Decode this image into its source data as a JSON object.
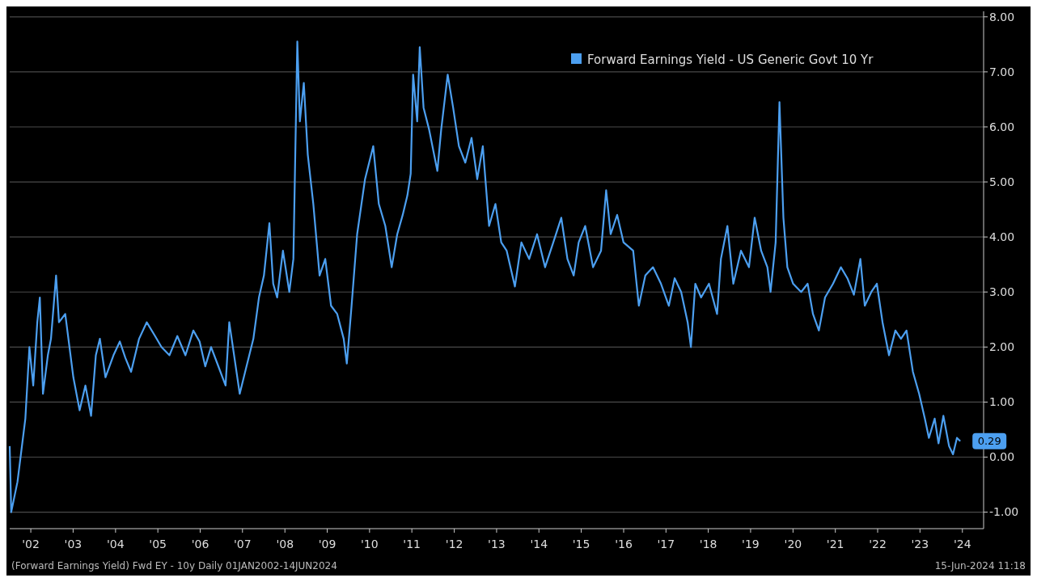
{
  "chart_data": {
    "type": "line",
    "series": [
      {
        "name": "Forward Earnings Yield - US Generic Govt 10 Yr",
        "color": "#4c9ff0",
        "x": [
          "2002-01-01",
          "2002-01-14",
          "2002-03-09",
          "2002-05-16",
          "2002-06-20",
          "2002-07-23",
          "2002-08-27",
          "2002-09-18",
          "2002-10-15",
          "2002-11-26",
          "2002-12-23",
          "2003-02-05",
          "2003-03-02",
          "2003-04-25",
          "2003-07-04",
          "2003-08-27",
          "2003-10-16",
          "2003-12-04",
          "2004-01-14",
          "2004-02-18",
          "2004-04-06",
          "2004-06-14",
          "2004-08-08",
          "2004-09-25",
          "2004-11-13",
          "2005-01-21",
          "2005-03-28",
          "2005-06-08",
          "2005-08-02",
          "2005-10-10",
          "2005-12-17",
          "2006-02-25",
          "2006-05-04",
          "2006-06-27",
          "2006-08-15",
          "2006-10-04",
          "2006-11-27",
          "2007-02-06",
          "2007-03-10",
          "2007-06-08",
          "2007-07-25",
          "2007-10-04",
          "2007-11-21",
          "2008-01-03",
          "2008-02-19",
          "2008-03-23",
          "2008-04-26",
          "2008-06-15",
          "2008-08-09",
          "2008-09-13",
          "2008-10-17",
          "2008-11-08",
          "2008-12-12",
          "2009-01-15",
          "2009-03-04",
          "2009-04-27",
          "2009-06-15",
          "2009-08-04",
          "2009-09-26",
          "2009-11-21",
          "2009-12-18",
          "2010-01-28",
          "2010-03-17",
          "2010-05-24",
          "2010-08-03",
          "2010-09-20",
          "2010-11-15",
          "2011-01-09",
          "2011-02-26",
          "2011-04-14",
          "2011-05-24",
          "2011-06-22",
          "2011-07-13",
          "2011-08-17",
          "2011-09-08",
          "2011-10-11",
          "2011-11-28",
          "2012-02-07",
          "2012-03-11",
          "2012-05-06",
          "2012-06-22",
          "2012-08-11",
          "2012-10-05",
          "2012-11-28",
          "2013-01-16",
          "2013-03-05",
          "2013-04-28",
          "2013-06-22",
          "2013-08-11",
          "2013-09-27",
          "2013-12-07",
          "2014-02-01",
          "2014-04-09",
          "2014-06-16",
          "2014-08-24",
          "2014-11-03",
          "2015-01-11",
          "2015-03-05",
          "2015-04-28",
          "2015-06-10",
          "2015-08-05",
          "2015-10-12",
          "2015-12-20",
          "2016-02-02",
          "2016-03-12",
          "2016-05-07",
          "2016-07-01",
          "2016-09-22",
          "2016-11-10",
          "2017-01-05",
          "2017-03-12",
          "2017-05-20",
          "2017-07-27",
          "2017-09-15",
          "2017-11-10",
          "2018-01-05",
          "2018-02-02",
          "2018-03-12",
          "2018-05-01",
          "2018-07-08",
          "2018-09-16",
          "2018-10-19",
          "2018-12-14",
          "2019-02-03",
          "2019-04-10",
          "2019-06-18",
          "2019-08-06",
          "2019-10-01",
          "2019-11-24",
          "2019-12-21",
          "2020-02-03",
          "2020-03-07",
          "2020-04-10",
          "2020-05-14",
          "2020-07-03",
          "2020-09-10",
          "2020-11-05",
          "2020-12-21",
          "2021-02-10",
          "2021-04-04",
          "2021-06-12",
          "2021-08-19",
          "2021-10-14",
          "2021-12-09",
          "2022-02-03",
          "2022-03-13",
          "2022-05-08",
          "2022-06-25",
          "2022-08-13",
          "2022-10-08",
          "2022-12-02",
          "2023-01-19",
          "2023-03-08",
          "2023-05-02",
          "2023-06-25",
          "2023-08-13",
          "2023-09-17",
          "2023-11-06",
          "2023-12-09",
          "2024-01-20",
          "2024-03-09",
          "2024-04-12",
          "2024-05-16",
          "2024-06-14"
        ],
        "values": [
          0.2,
          -1.0,
          -0.45,
          0.7,
          2.0,
          1.3,
          2.45,
          2.9,
          1.15,
          1.85,
          2.15,
          3.3,
          2.45,
          2.6,
          1.45,
          0.85,
          1.3,
          0.75,
          1.85,
          2.15,
          1.45,
          1.85,
          2.1,
          1.8,
          1.55,
          2.15,
          2.45,
          2.2,
          2.0,
          1.85,
          2.2,
          1.85,
          2.3,
          2.1,
          1.65,
          2.0,
          1.7,
          1.3,
          2.45,
          1.15,
          1.55,
          2.15,
          2.9,
          3.3,
          4.25,
          3.15,
          2.9,
          3.75,
          3.0,
          3.6,
          7.55,
          6.1,
          6.8,
          5.5,
          4.6,
          3.3,
          3.6,
          2.75,
          2.6,
          2.15,
          1.7,
          2.75,
          4.05,
          5.05,
          5.65,
          4.6,
          4.2,
          3.45,
          4.05,
          4.4,
          4.75,
          5.15,
          6.95,
          6.1,
          7.45,
          6.35,
          5.95,
          5.2,
          5.95,
          6.95,
          6.35,
          5.65,
          5.35,
          5.8,
          5.05,
          5.65,
          4.2,
          4.6,
          3.9,
          3.75,
          3.1,
          3.9,
          3.6,
          4.05,
          3.45,
          3.9,
          4.35,
          3.6,
          3.3,
          3.9,
          4.2,
          3.45,
          3.75,
          4.85,
          4.05,
          4.4,
          3.9,
          3.75,
          2.75,
          3.3,
          3.45,
          3.15,
          2.75,
          3.25,
          3.0,
          2.45,
          2.0,
          3.15,
          2.9,
          3.15,
          2.6,
          3.6,
          4.2,
          3.15,
          3.75,
          3.45,
          4.35,
          3.75,
          3.45,
          3.0,
          3.9,
          6.45,
          4.35,
          3.45,
          3.15,
          3.0,
          3.15,
          2.6,
          2.3,
          2.9,
          3.15,
          3.45,
          3.25,
          2.95,
          3.6,
          2.75,
          3.0,
          3.15,
          2.45,
          1.85,
          2.3,
          2.15,
          2.3,
          1.55,
          1.15,
          0.7,
          0.35,
          0.7,
          0.25,
          0.75,
          0.2,
          0.05,
          0.35,
          0.29
        ]
      }
    ],
    "xlim": [
      "2002-01-01",
      "2025-01-01"
    ],
    "xticks": [
      {
        "value": "2002-07-02",
        "label": "'02"
      },
      {
        "value": "2003-07-02",
        "label": "'03"
      },
      {
        "value": "2004-07-02",
        "label": "'04"
      },
      {
        "value": "2005-07-02",
        "label": "'05"
      },
      {
        "value": "2006-07-02",
        "label": "'06"
      },
      {
        "value": "2007-07-02",
        "label": "'07"
      },
      {
        "value": "2008-07-02",
        "label": "'08"
      },
      {
        "value": "2009-07-02",
        "label": "'09"
      },
      {
        "value": "2010-07-02",
        "label": "'10"
      },
      {
        "value": "2011-07-02",
        "label": "'11"
      },
      {
        "value": "2012-07-02",
        "label": "'12"
      },
      {
        "value": "2013-07-02",
        "label": "'13"
      },
      {
        "value": "2014-07-02",
        "label": "'14"
      },
      {
        "value": "2015-07-02",
        "label": "'15"
      },
      {
        "value": "2016-07-02",
        "label": "'16"
      },
      {
        "value": "2017-07-02",
        "label": "'17"
      },
      {
        "value": "2018-07-02",
        "label": "'18"
      },
      {
        "value": "2019-07-02",
        "label": "'19"
      },
      {
        "value": "2020-07-02",
        "label": "'20"
      },
      {
        "value": "2021-07-02",
        "label": "'21"
      },
      {
        "value": "2022-07-02",
        "label": "'22"
      },
      {
        "value": "2023-07-02",
        "label": "'23"
      },
      {
        "value": "2024-07-02",
        "label": "'24"
      }
    ],
    "ylim": [
      -1.3,
      8.1
    ],
    "yticks": [
      {
        "value": -1,
        "label": "-1.00"
      },
      {
        "value": 0,
        "label": "0.00"
      },
      {
        "value": 1,
        "label": "1.00"
      },
      {
        "value": 2,
        "label": "2.00"
      },
      {
        "value": 3,
        "label": "3.00"
      },
      {
        "value": 4,
        "label": "4.00"
      },
      {
        "value": 5,
        "label": "5.00"
      },
      {
        "value": 6,
        "label": "6.00"
      },
      {
        "value": 7,
        "label": "7.00"
      },
      {
        "value": 8,
        "label": "8.00"
      }
    ],
    "grid": "y",
    "legend": "top right",
    "annotations": [
      {
        "text": "0.29",
        "x": "2024-06-14",
        "y": 0.29
      },
      "(Forward Earnings Yield) Fwd EY - 10y  Daily 01JAN2002-14JUN2024",
      "15-Jun-2024 11:18"
    ]
  }
}
